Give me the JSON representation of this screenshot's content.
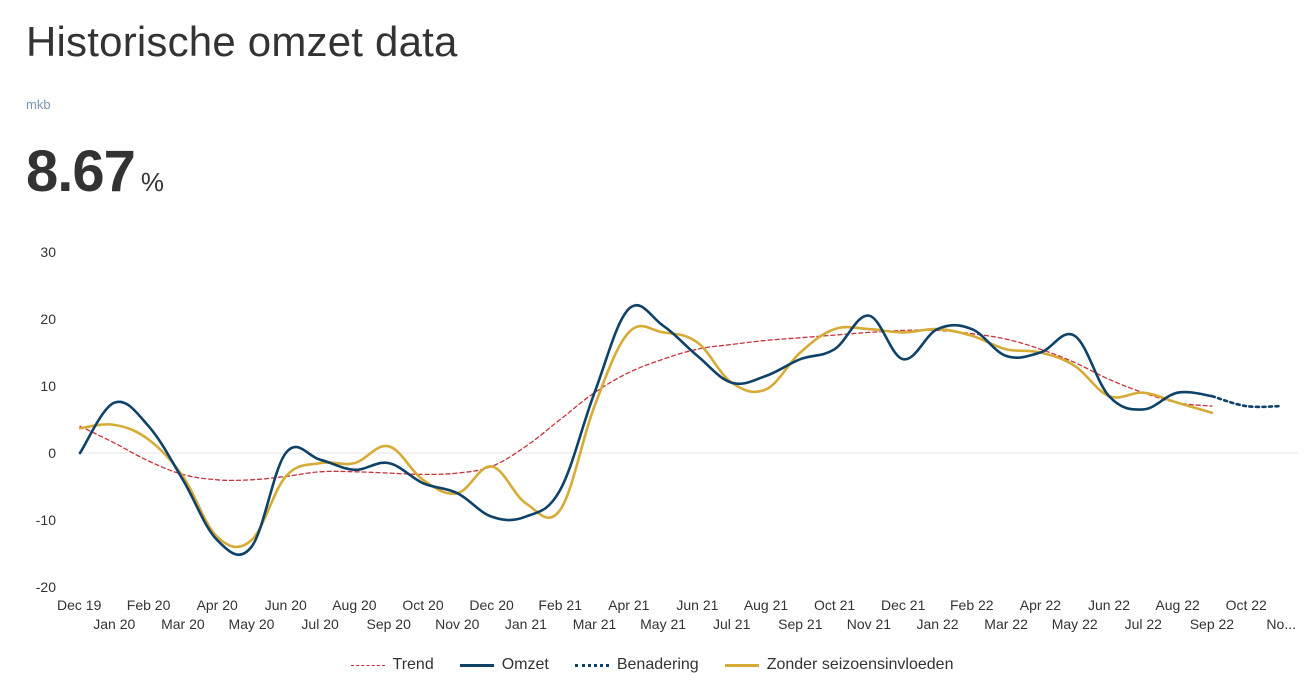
{
  "header": {
    "title": "Historische omzet data",
    "subtitle": "mkb",
    "kpi_value": "8.67",
    "kpi_unit": "%"
  },
  "colors": {
    "trend": "#c8323c",
    "omzet": "#0e4269",
    "benadering": "#0e4269",
    "zonder": "#d6ac37",
    "grid": "#e6e6e6"
  },
  "chart_data": {
    "type": "line",
    "x_labels": [
      "Dec 19",
      "Jan 20",
      "Feb 20",
      "Mar 20",
      "Apr 20",
      "May 20",
      "Jun 20",
      "Jul 20",
      "Aug 20",
      "Sep 20",
      "Oct 20",
      "Nov 20",
      "Dec 20",
      "Jan 21",
      "Feb 21",
      "Mar 21",
      "Apr 21",
      "May 21",
      "Jun 21",
      "Jul 21",
      "Aug 21",
      "Sep 21",
      "Oct 21",
      "Nov 21",
      "Dec 21",
      "Jan 22",
      "Feb 22",
      "Mar 22",
      "Apr 22",
      "May 22",
      "Jun 22",
      "Jul 22",
      "Aug 22",
      "Sep 22",
      "Oct 22",
      "No..."
    ],
    "ylim": [
      -20,
      30
    ],
    "yticks": [
      -20,
      -10,
      0,
      10,
      20,
      30
    ],
    "legend_position": "bottom-center",
    "series": [
      {
        "name": "Trend",
        "style": "dashed",
        "values": [
          4.0,
          1.5,
          -1.2,
          -3.2,
          -4.0,
          -4.0,
          -3.5,
          -2.8,
          -2.8,
          -3.0,
          -3.2,
          -3.0,
          -2.0,
          1.0,
          5.0,
          9.0,
          12.0,
          14.0,
          15.5,
          16.2,
          16.8,
          17.2,
          17.6,
          18.0,
          18.3,
          18.3,
          17.8,
          17.0,
          15.5,
          13.5,
          11.0,
          9.0,
          7.5,
          7.0,
          null,
          null
        ]
      },
      {
        "name": "Omzet",
        "style": "solid",
        "values": [
          0.0,
          7.5,
          4.0,
          -4.0,
          -13.0,
          -14.0,
          0.0,
          -1.0,
          -2.5,
          -1.5,
          -4.5,
          -6.0,
          -9.5,
          -9.5,
          -5.5,
          9.0,
          21.5,
          19.0,
          14.5,
          10.5,
          11.5,
          14.0,
          15.5,
          20.5,
          14.0,
          18.5,
          18.5,
          14.5,
          15.0,
          17.5,
          8.5,
          6.5,
          9.0,
          8.5,
          null,
          null
        ]
      },
      {
        "name": "Benadering",
        "style": "dotted",
        "values": [
          null,
          null,
          null,
          null,
          null,
          null,
          null,
          null,
          null,
          null,
          null,
          null,
          null,
          null,
          null,
          null,
          null,
          null,
          null,
          null,
          null,
          null,
          null,
          null,
          null,
          null,
          null,
          null,
          null,
          null,
          null,
          null,
          null,
          8.5,
          7.0,
          7.0
        ]
      },
      {
        "name": "Zonder seizoensinvloeden",
        "style": "solid",
        "values": [
          3.7,
          4.2,
          2.0,
          -3.5,
          -12.5,
          -13.0,
          -3.5,
          -1.5,
          -1.5,
          1.0,
          -4.0,
          -6.0,
          -2.0,
          -7.5,
          -8.5,
          7.0,
          18.0,
          18.0,
          16.5,
          10.5,
          9.5,
          15.0,
          18.5,
          18.5,
          18.0,
          18.5,
          17.5,
          15.5,
          15.0,
          13.0,
          8.5,
          9.0,
          7.5,
          6.0,
          null,
          null
        ]
      }
    ]
  }
}
